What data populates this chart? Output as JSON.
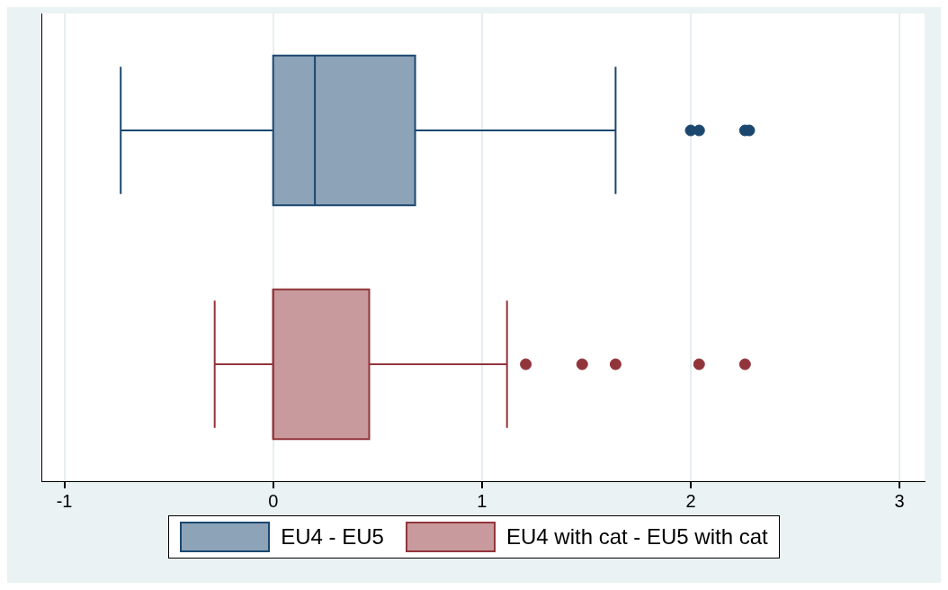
{
  "chart_data": {
    "type": "box",
    "orientation": "horizontal",
    "categories": [
      null
    ],
    "xlim": [
      -1.11,
      3.12
    ],
    "xticks": [
      -1,
      0,
      1,
      2,
      3
    ],
    "grid": "x",
    "tick_labels": "x",
    "legend": "bottom",
    "marker": "circle",
    "series": [
      {
        "name": "EU4 - EU5",
        "color": "#8da3b7",
        "boxes": [
          {
            "low": -0.73,
            "q1": 0,
            "median": 0.2,
            "q3": 0.68,
            "high": 1.64,
            "outliers": [
              2.0,
              2.04,
              2.26,
              2.28
            ]
          }
        ]
      },
      {
        "name": "EU4 with cat - EU5 with cat",
        "color": "#c89a9d",
        "boxes": [
          {
            "low": -0.28,
            "q1": 0,
            "median": 0,
            "q3": 0.46,
            "high": 1.12,
            "outliers": [
              1.21,
              1.48,
              1.64,
              2.04,
              2.26
            ]
          }
        ]
      }
    ]
  }
}
